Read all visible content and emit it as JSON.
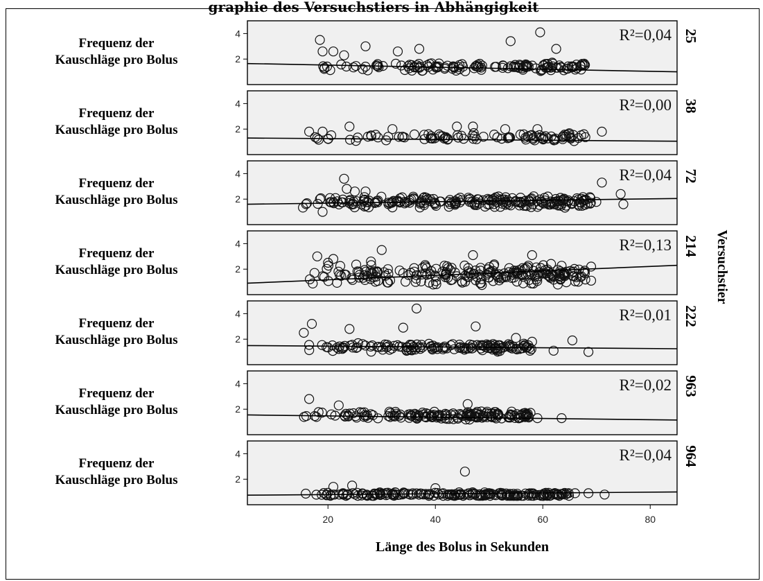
{
  "header_text": "graphie des Versuchstiers in Abhängigkeit",
  "chart_data": {
    "type": "scatter",
    "xlabel": "Länge des Bolus in Sekunden",
    "ylabel": "Frequenz der Kauschläge pro Bolus",
    "ylabel_lines": [
      "Frequenz der",
      "Kauschläge pro Bolus"
    ],
    "facet_label": "Versuchstier",
    "xlim": [
      5,
      85
    ],
    "ylim": [
      0,
      5
    ],
    "x_ticks": [
      20,
      40,
      60,
      80
    ],
    "y_ticks": [
      2,
      4
    ],
    "grid": false,
    "panels": [
      {
        "id": "25",
        "r2": "R²=0,04",
        "fit": [
          [
            5,
            1.65
          ],
          [
            85,
            1.0
          ]
        ],
        "cluster": [
          [
            18,
            68,
            1.4,
            0.4,
            140
          ]
        ],
        "outliers": [
          [
            18.5,
            3.5
          ],
          [
            21,
            2.6
          ],
          [
            27,
            3.0
          ],
          [
            33,
            2.6
          ],
          [
            37,
            2.8
          ],
          [
            54,
            3.4
          ],
          [
            59.5,
            4.1
          ],
          [
            62.5,
            2.8
          ],
          [
            19,
            2.6
          ],
          [
            23,
            2.3
          ]
        ]
      },
      {
        "id": "38",
        "r2": "R²=0,00",
        "fit": [
          [
            5,
            1.3
          ],
          [
            85,
            1.05
          ]
        ],
        "cluster": [
          [
            16,
            68,
            1.35,
            0.35,
            95
          ]
        ],
        "outliers": [
          [
            16.5,
            1.8
          ],
          [
            19,
            1.8
          ],
          [
            24,
            2.2
          ],
          [
            32,
            2.0
          ],
          [
            44,
            2.2
          ],
          [
            47,
            2.2
          ],
          [
            53,
            2.0
          ],
          [
            59,
            2.0
          ],
          [
            71,
            1.8
          ]
        ]
      },
      {
        "id": "72",
        "r2": "R²=0,04",
        "fit": [
          [
            5,
            1.6
          ],
          [
            85,
            2.05
          ]
        ],
        "cluster": [
          [
            15,
            70,
            1.8,
            0.5,
            230
          ]
        ],
        "outliers": [
          [
            23,
            3.6
          ],
          [
            23.5,
            2.8
          ],
          [
            25,
            2.6
          ],
          [
            27,
            2.6
          ],
          [
            71,
            3.3
          ],
          [
            74.5,
            2.4
          ],
          [
            75,
            1.6
          ],
          [
            19,
            1.0
          ]
        ]
      },
      {
        "id": "214",
        "r2": "R²=0,13",
        "fit": [
          [
            5,
            0.9
          ],
          [
            85,
            2.3
          ]
        ],
        "cluster": [
          [
            16,
            68,
            1.6,
            0.9,
            230
          ]
        ],
        "outliers": [
          [
            18,
            3.0
          ],
          [
            20,
            2.5
          ],
          [
            21,
            2.8
          ],
          [
            30,
            3.5
          ],
          [
            28,
            2.6
          ],
          [
            47,
            3.1
          ],
          [
            58,
            3.1
          ],
          [
            69,
            2.2
          ],
          [
            69,
            1.1
          ]
        ]
      },
      {
        "id": "222",
        "r2": "R²=0,01",
        "fit": [
          [
            5,
            1.5
          ],
          [
            85,
            1.25
          ]
        ],
        "cluster": [
          [
            15,
            58,
            1.35,
            0.35,
            150
          ]
        ],
        "outliers": [
          [
            17,
            3.2
          ],
          [
            24,
            2.8
          ],
          [
            34,
            2.9
          ],
          [
            36.5,
            4.4
          ],
          [
            47.5,
            3.0
          ],
          [
            55,
            2.1
          ],
          [
            58,
            1.8
          ],
          [
            65.5,
            1.9
          ],
          [
            68.5,
            1.0
          ],
          [
            15.5,
            2.5
          ],
          [
            62,
            1.1
          ]
        ]
      },
      {
        "id": "963",
        "r2": "R²=0,02",
        "fit": [
          [
            5,
            1.55
          ],
          [
            85,
            1.15
          ]
        ],
        "cluster": [
          [
            15,
            58,
            1.5,
            0.35,
            170
          ]
        ],
        "outliers": [
          [
            16.5,
            2.8
          ],
          [
            22,
            2.3
          ],
          [
            46,
            2.4
          ],
          [
            57,
            1.6
          ],
          [
            59,
            1.3
          ],
          [
            63.5,
            1.3
          ]
        ]
      },
      {
        "id": "964",
        "r2": "R²=0,04",
        "fit": [
          [
            5,
            0.75
          ],
          [
            85,
            1.0
          ]
        ],
        "cluster": [
          [
            15,
            65,
            0.8,
            0.2,
            200
          ]
        ],
        "outliers": [
          [
            45.5,
            2.6
          ],
          [
            24.5,
            1.5
          ],
          [
            21,
            1.4
          ],
          [
            40,
            1.3
          ],
          [
            66,
            0.9
          ],
          [
            68.5,
            0.9
          ],
          [
            71.5,
            0.8
          ]
        ]
      }
    ]
  }
}
